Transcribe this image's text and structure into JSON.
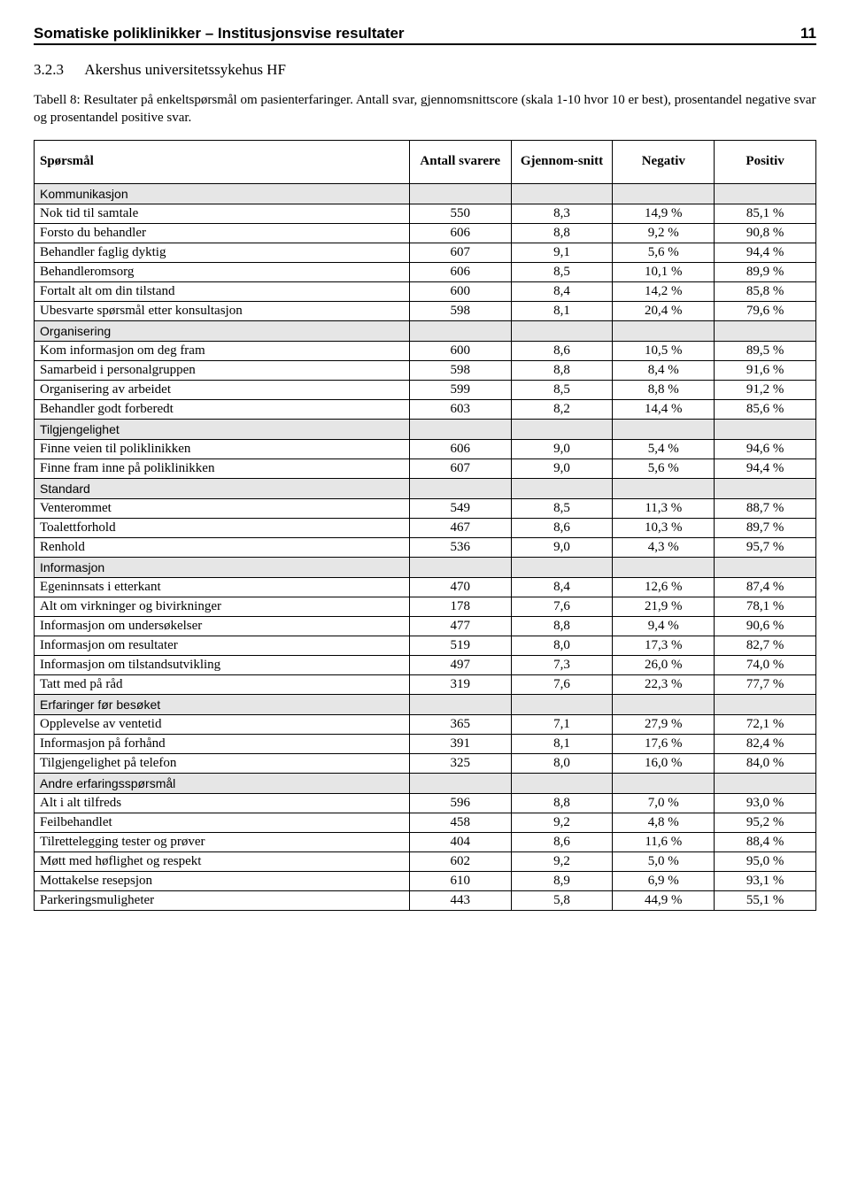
{
  "header": {
    "title": "Somatiske poliklinikker – Institusjonsvise resultater",
    "page": "11"
  },
  "section": {
    "number": "3.2.3",
    "title": "Akershus universitetssykehus HF"
  },
  "caption": "Tabell 8: Resultater på enkeltspørsmål om pasienterfaringer. Antall svar, gjennomsnittscore (skala 1-10 hvor 10 er best), prosentandel negative svar og prosentandel positive svar.",
  "table": {
    "headers": [
      "Spørsmål",
      "Antall svarere",
      "Gjennom-snitt",
      "Negativ",
      "Positiv"
    ],
    "sections": [
      {
        "title": "Kommunikasjon",
        "rows": [
          {
            "label": "Nok tid til samtale",
            "n": "550",
            "mean": "8,3",
            "neg": "14,9 %",
            "pos": "85,1 %"
          },
          {
            "label": "Forsto du behandler",
            "n": "606",
            "mean": "8,8",
            "neg": "9,2 %",
            "pos": "90,8 %"
          },
          {
            "label": "Behandler faglig dyktig",
            "n": "607",
            "mean": "9,1",
            "neg": "5,6 %",
            "pos": "94,4 %"
          },
          {
            "label": "Behandleromsorg",
            "n": "606",
            "mean": "8,5",
            "neg": "10,1 %",
            "pos": "89,9 %"
          },
          {
            "label": "Fortalt alt om din tilstand",
            "n": "600",
            "mean": "8,4",
            "neg": "14,2 %",
            "pos": "85,8 %"
          },
          {
            "label": "Ubesvarte spørsmål etter konsultasjon",
            "n": "598",
            "mean": "8,1",
            "neg": "20,4 %",
            "pos": "79,6 %"
          }
        ]
      },
      {
        "title": "Organisering",
        "rows": [
          {
            "label": "Kom informasjon om deg fram",
            "n": "600",
            "mean": "8,6",
            "neg": "10,5 %",
            "pos": "89,5 %"
          },
          {
            "label": "Samarbeid i personalgruppen",
            "n": "598",
            "mean": "8,8",
            "neg": "8,4 %",
            "pos": "91,6 %"
          },
          {
            "label": "Organisering av arbeidet",
            "n": "599",
            "mean": "8,5",
            "neg": "8,8 %",
            "pos": "91,2 %"
          },
          {
            "label": "Behandler godt forberedt",
            "n": "603",
            "mean": "8,2",
            "neg": "14,4 %",
            "pos": "85,6 %"
          }
        ]
      },
      {
        "title": "Tilgjengelighet",
        "rows": [
          {
            "label": "Finne veien til poliklinikken",
            "n": "606",
            "mean": "9,0",
            "neg": "5,4 %",
            "pos": "94,6 %"
          },
          {
            "label": "Finne fram inne på poliklinikken",
            "n": "607",
            "mean": "9,0",
            "neg": "5,6 %",
            "pos": "94,4 %"
          }
        ]
      },
      {
        "title": "Standard",
        "rows": [
          {
            "label": "Venterommet",
            "n": "549",
            "mean": "8,5",
            "neg": "11,3 %",
            "pos": "88,7 %"
          },
          {
            "label": "Toalettforhold",
            "n": "467",
            "mean": "8,6",
            "neg": "10,3 %",
            "pos": "89,7 %"
          },
          {
            "label": "Renhold",
            "n": "536",
            "mean": "9,0",
            "neg": "4,3 %",
            "pos": "95,7 %"
          }
        ]
      },
      {
        "title": "Informasjon",
        "rows": [
          {
            "label": "Egeninnsats i etterkant",
            "n": "470",
            "mean": "8,4",
            "neg": "12,6 %",
            "pos": "87,4 %"
          },
          {
            "label": "Alt om virkninger og bivirkninger",
            "n": "178",
            "mean": "7,6",
            "neg": "21,9 %",
            "pos": "78,1 %"
          },
          {
            "label": "Informasjon om undersøkelser",
            "n": "477",
            "mean": "8,8",
            "neg": "9,4 %",
            "pos": "90,6 %"
          },
          {
            "label": "Informasjon om resultater",
            "n": "519",
            "mean": "8,0",
            "neg": "17,3 %",
            "pos": "82,7 %"
          },
          {
            "label": "Informasjon om tilstandsutvikling",
            "n": "497",
            "mean": "7,3",
            "neg": "26,0 %",
            "pos": "74,0 %"
          },
          {
            "label": "Tatt med på råd",
            "n": "319",
            "mean": "7,6",
            "neg": "22,3 %",
            "pos": "77,7 %"
          }
        ]
      },
      {
        "title": "Erfaringer før besøket",
        "rows": [
          {
            "label": "Opplevelse av ventetid",
            "n": "365",
            "mean": "7,1",
            "neg": "27,9 %",
            "pos": "72,1 %"
          },
          {
            "label": "Informasjon på forhånd",
            "n": "391",
            "mean": "8,1",
            "neg": "17,6 %",
            "pos": "82,4 %"
          },
          {
            "label": "Tilgjengelighet på telefon",
            "n": "325",
            "mean": "8,0",
            "neg": "16,0 %",
            "pos": "84,0 %"
          }
        ]
      },
      {
        "title": "Andre erfaringsspørsmål",
        "rows": [
          {
            "label": "Alt i alt tilfreds",
            "n": "596",
            "mean": "8,8",
            "neg": "7,0 %",
            "pos": "93,0 %"
          },
          {
            "label": "Feilbehandlet",
            "n": "458",
            "mean": "9,2",
            "neg": "4,8 %",
            "pos": "95,2 %"
          },
          {
            "label": "Tilrettelegging tester og prøver",
            "n": "404",
            "mean": "8,6",
            "neg": "11,6 %",
            "pos": "88,4 %"
          },
          {
            "label": "Møtt med høflighet og respekt",
            "n": "602",
            "mean": "9,2",
            "neg": "5,0 %",
            "pos": "95,0 %"
          },
          {
            "label": "Mottakelse resepsjon",
            "n": "610",
            "mean": "8,9",
            "neg": "6,9 %",
            "pos": "93,1 %"
          },
          {
            "label": "Parkeringsmuligheter",
            "n": "443",
            "mean": "5,8",
            "neg": "44,9 %",
            "pos": "55,1 %"
          }
        ]
      }
    ]
  }
}
